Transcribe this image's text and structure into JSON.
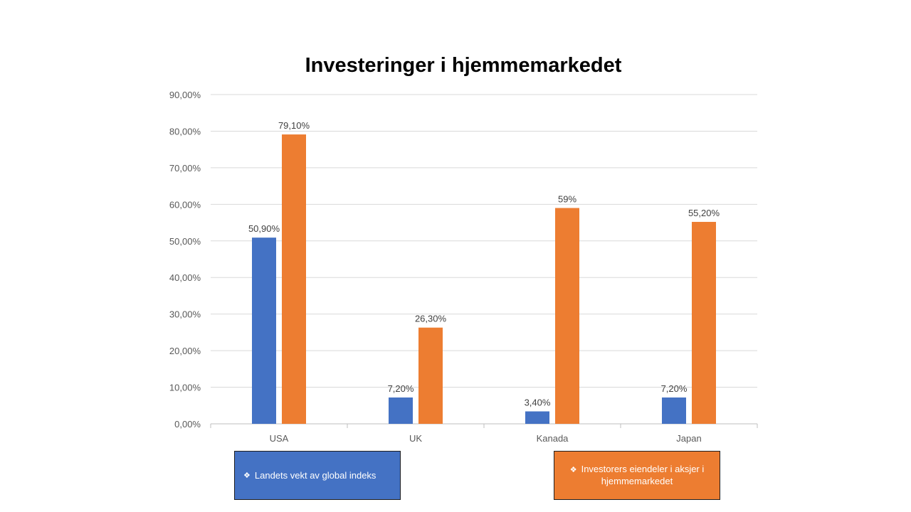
{
  "chart_data": {
    "type": "bar",
    "title": "Investeringer i hjemmemarkedet",
    "categories": [
      "USA",
      "UK",
      "Kanada",
      "Japan"
    ],
    "series": [
      {
        "name": "Landets vekt av global indeks",
        "values": [
          50.9,
          7.2,
          3.4,
          7.2
        ],
        "labels": [
          "50,90%",
          "7,20%",
          "3,40%",
          "7,20%"
        ],
        "color": "#4472c4"
      },
      {
        "name": "Investorers eiendeler i aksjer i hjemmemarkedet",
        "values": [
          79.1,
          26.3,
          59,
          55.2
        ],
        "labels": [
          "79,10%",
          "26,30%",
          "59%",
          "55,20%"
        ],
        "color": "#ed7d31"
      }
    ],
    "ylim": [
      0,
      90
    ],
    "yticks": [
      "0,00%",
      "10,00%",
      "20,00%",
      "30,00%",
      "40,00%",
      "50,00%",
      "60,00%",
      "70,00%",
      "80,00%",
      "90,00%"
    ],
    "grid": true,
    "xlabel": "",
    "ylabel": "",
    "legend_position": "bottom"
  },
  "legend": {
    "bullet": "❖",
    "series_a": "Landets vekt av global indeks",
    "series_b": "Investorers eiendeler i aksjer i hjemmemarkedet"
  }
}
